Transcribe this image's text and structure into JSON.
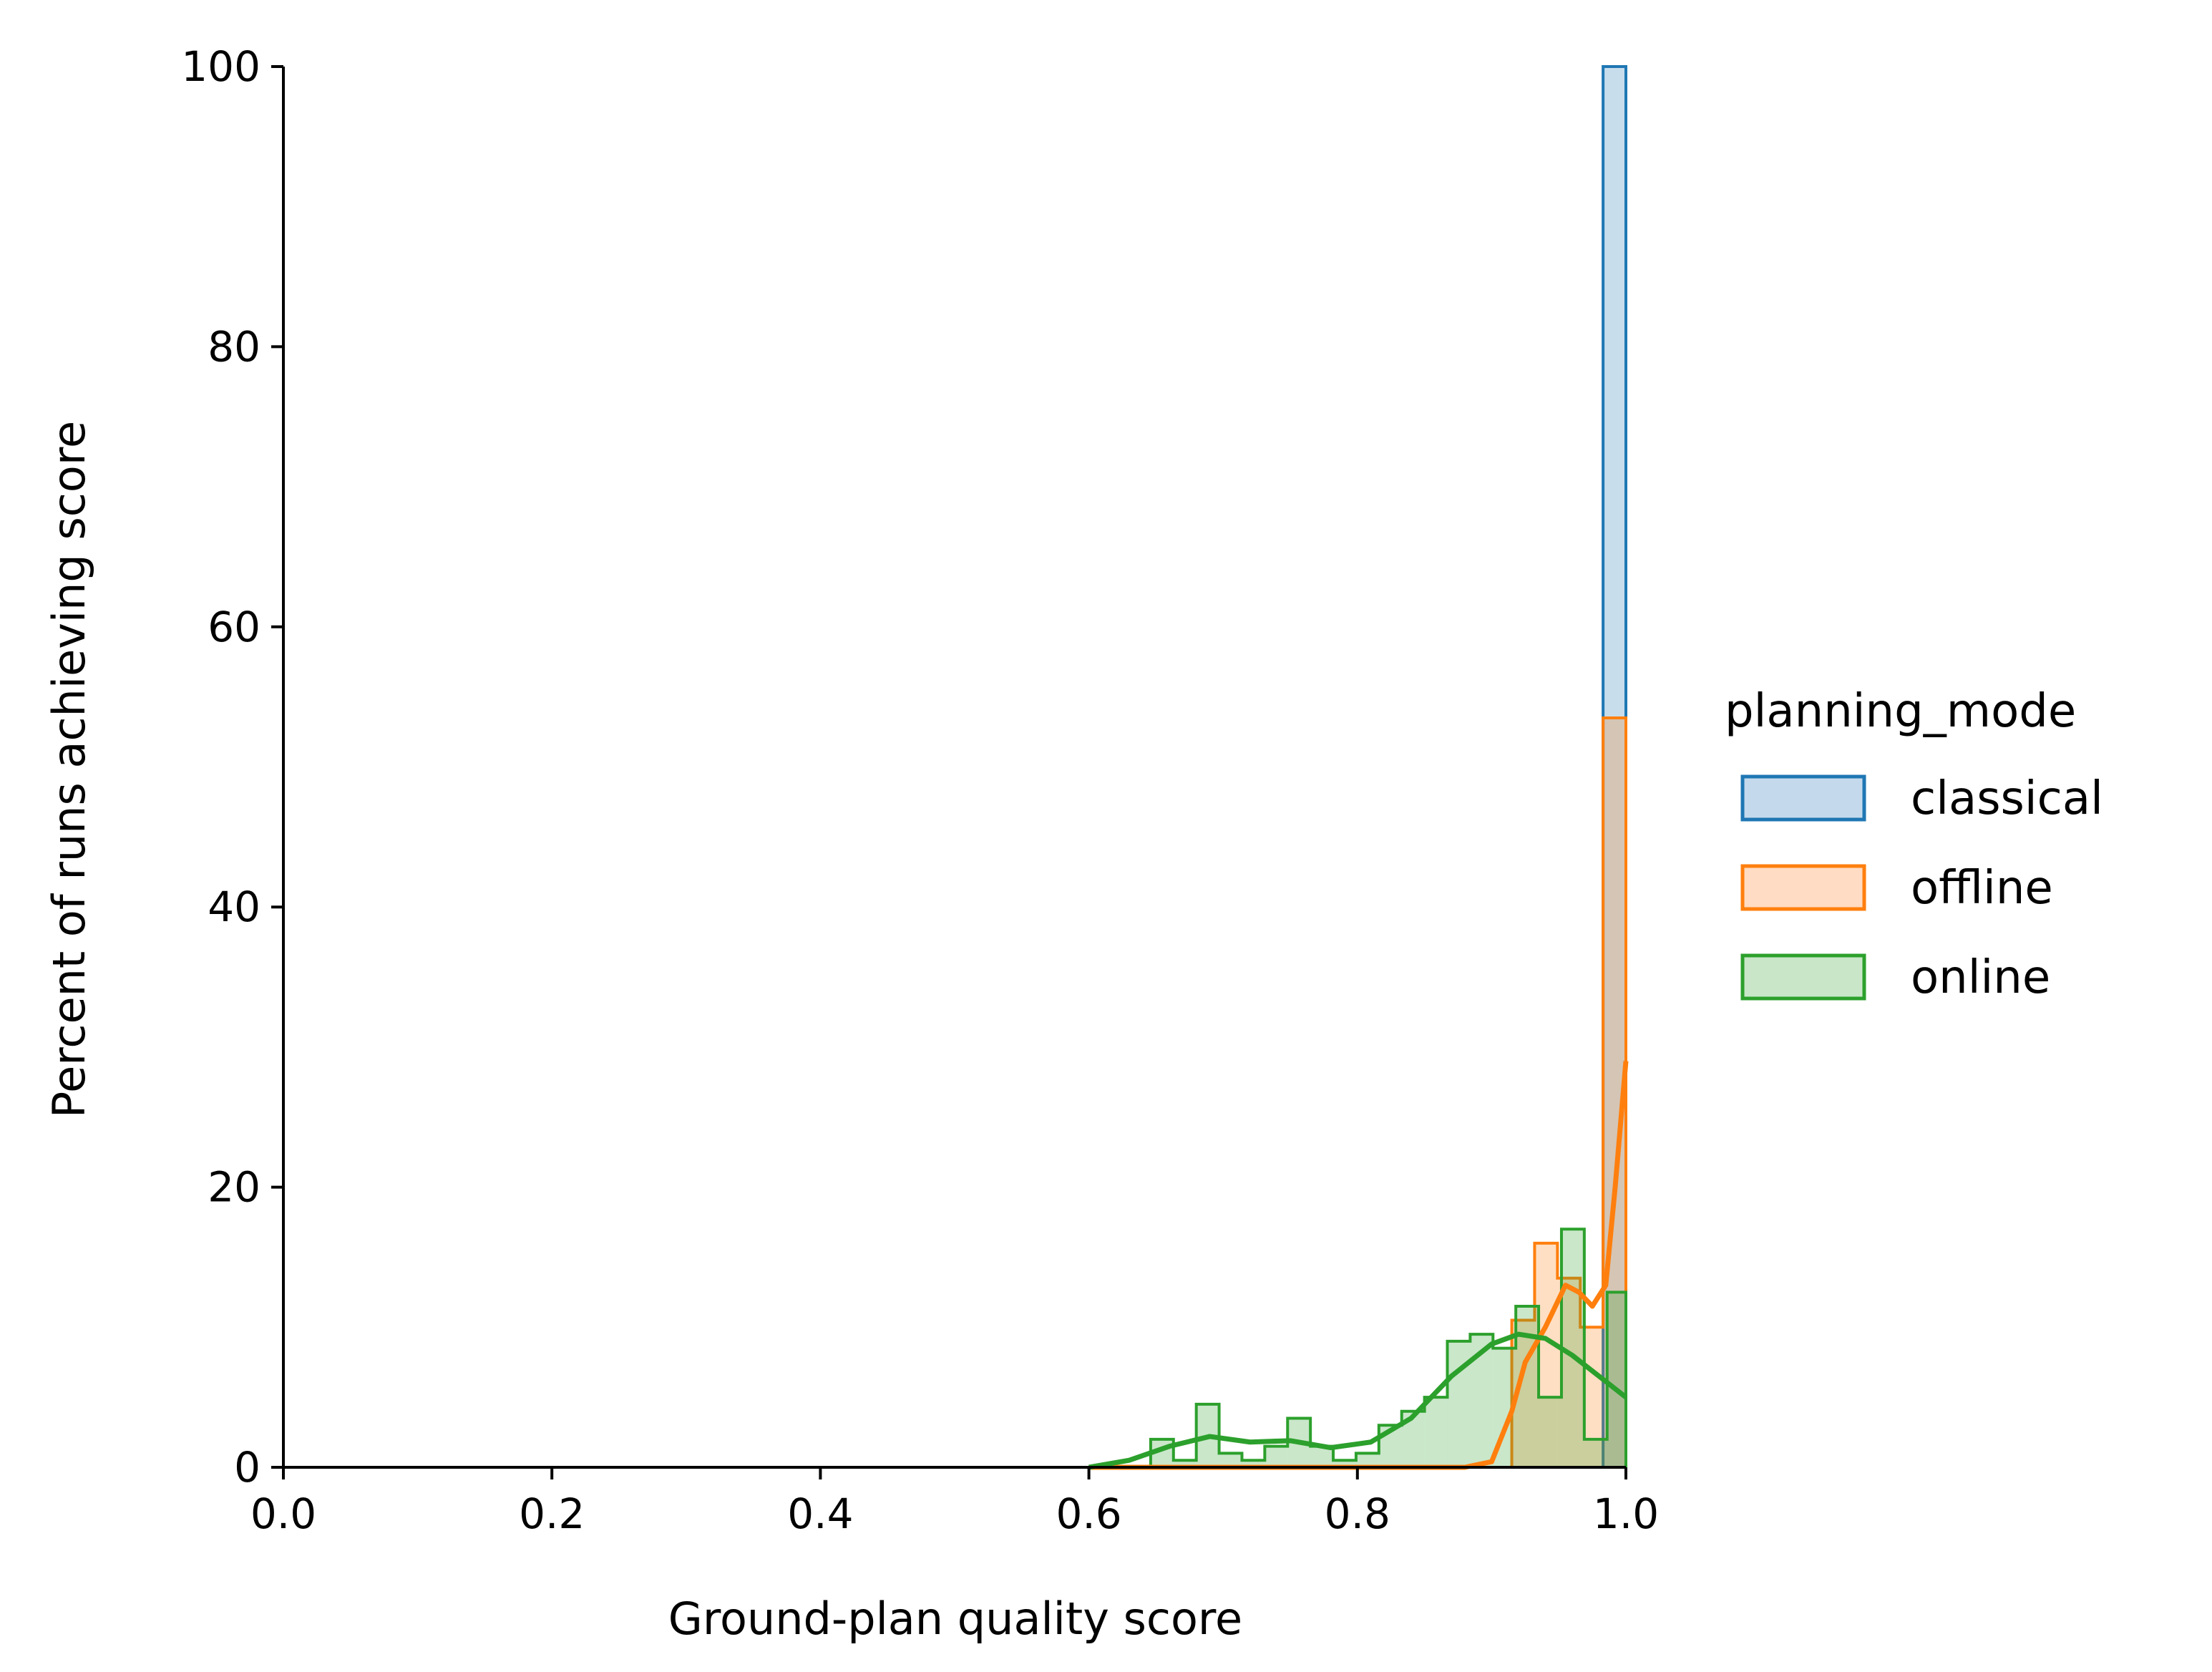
{
  "chart_data": {
    "type": "histogram",
    "xlabel": "Ground-plan quality score",
    "ylabel": "Percent of runs achieving score",
    "xlim": [
      0.0,
      1.0
    ],
    "ylim": [
      0,
      100
    ],
    "x_ticks": [
      0.0,
      0.2,
      0.4,
      0.6,
      0.8,
      1.0
    ],
    "x_tick_labels": [
      "0.0",
      "0.2",
      "0.4",
      "0.6",
      "0.8",
      "1.0"
    ],
    "y_ticks": [
      0,
      20,
      40,
      60,
      80,
      100
    ],
    "y_tick_labels": [
      "0",
      "20",
      "40",
      "60",
      "80",
      "100"
    ],
    "grid": false,
    "legend": {
      "title": "planning_mode",
      "placement": "right",
      "entries": [
        "classical",
        "offline",
        "online"
      ]
    },
    "series": [
      {
        "name": "classical",
        "color": "#1f77b4",
        "fill": "#c4daec",
        "bins": [
          {
            "x0": 0.983,
            "x1": 1.0,
            "y": 100
          }
        ],
        "kde": []
      },
      {
        "name": "offline",
        "color": "#ff7f0e",
        "fill": "#ffdcc3",
        "bins": [
          {
            "x0": 0.915,
            "x1": 0.932,
            "y": 10.5
          },
          {
            "x0": 0.932,
            "x1": 0.949,
            "y": 16
          },
          {
            "x0": 0.949,
            "x1": 0.966,
            "y": 13.5
          },
          {
            "x0": 0.966,
            "x1": 0.983,
            "y": 10
          },
          {
            "x0": 0.983,
            "x1": 1.0,
            "y": 53.5
          }
        ],
        "kde": [
          [
            0.6,
            0
          ],
          [
            0.88,
            0
          ],
          [
            0.9,
            0.4
          ],
          [
            0.915,
            4
          ],
          [
            0.925,
            7.5
          ],
          [
            0.94,
            10
          ],
          [
            0.955,
            13
          ],
          [
            0.965,
            12.5
          ],
          [
            0.975,
            11.5
          ],
          [
            0.985,
            13
          ],
          [
            0.992,
            20
          ],
          [
            1.0,
            29
          ]
        ]
      },
      {
        "name": "online",
        "color": "#2ca02c",
        "fill": "#c9e7c8",
        "bins": [
          {
            "x0": 0.646,
            "x1": 0.663,
            "y": 2
          },
          {
            "x0": 0.663,
            "x1": 0.68,
            "y": 0.5
          },
          {
            "x0": 0.68,
            "x1": 0.697,
            "y": 4.5
          },
          {
            "x0": 0.697,
            "x1": 0.714,
            "y": 1
          },
          {
            "x0": 0.714,
            "x1": 0.731,
            "y": 0.5
          },
          {
            "x0": 0.731,
            "x1": 0.748,
            "y": 1.5
          },
          {
            "x0": 0.748,
            "x1": 0.765,
            "y": 3.5
          },
          {
            "x0": 0.765,
            "x1": 0.782,
            "y": 1.5
          },
          {
            "x0": 0.782,
            "x1": 0.799,
            "y": 0.5
          },
          {
            "x0": 0.799,
            "x1": 0.816,
            "y": 1
          },
          {
            "x0": 0.816,
            "x1": 0.833,
            "y": 3
          },
          {
            "x0": 0.833,
            "x1": 0.85,
            "y": 4
          },
          {
            "x0": 0.85,
            "x1": 0.867,
            "y": 5
          },
          {
            "x0": 0.867,
            "x1": 0.884,
            "y": 9
          },
          {
            "x0": 0.884,
            "x1": 0.901,
            "y": 9.5
          },
          {
            "x0": 0.901,
            "x1": 0.918,
            "y": 8.5
          },
          {
            "x0": 0.918,
            "x1": 0.935,
            "y": 11.5
          },
          {
            "x0": 0.935,
            "x1": 0.952,
            "y": 5
          },
          {
            "x0": 0.952,
            "x1": 0.969,
            "y": 17
          },
          {
            "x0": 0.969,
            "x1": 0.986,
            "y": 2
          },
          {
            "x0": 0.986,
            "x1": 1.0,
            "y": 12.5
          }
        ],
        "kde": [
          [
            0.6,
            0
          ],
          [
            0.63,
            0.5
          ],
          [
            0.66,
            1.5
          ],
          [
            0.69,
            2.2
          ],
          [
            0.72,
            1.8
          ],
          [
            0.75,
            1.9
          ],
          [
            0.78,
            1.4
          ],
          [
            0.81,
            1.8
          ],
          [
            0.84,
            3.5
          ],
          [
            0.87,
            6.5
          ],
          [
            0.9,
            8.8
          ],
          [
            0.92,
            9.5
          ],
          [
            0.94,
            9.2
          ],
          [
            0.96,
            8
          ],
          [
            0.98,
            6.5
          ],
          [
            1.0,
            5
          ]
        ]
      }
    ]
  }
}
